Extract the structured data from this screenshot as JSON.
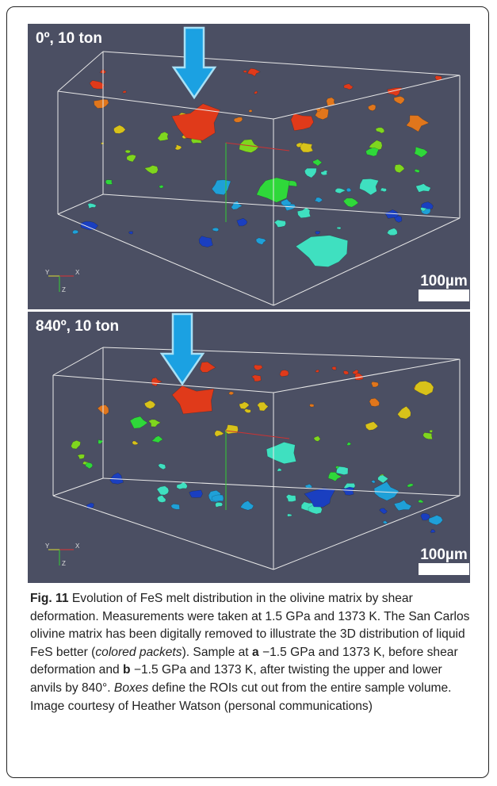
{
  "panels": [
    {
      "label": "0º, 10 ton",
      "scale_bar": "100µm",
      "axes": [
        "Y",
        "X",
        "Z"
      ]
    },
    {
      "label": "840º, 10 ton",
      "scale_bar": "100µm",
      "axes": [
        "Y",
        "X",
        "Z"
      ]
    }
  ],
  "caption": {
    "segments": [
      "Fig. 11",
      " Evolution of FeS melt distribution in the olivine matrix by shear deformation. Measurements were taken at 1.5 GPa and 1373 K. The San Carlos olivine matrix has been digitally removed to illustrate the 3D distribution of liquid FeS better (",
      "colored packets",
      "). Sample at ",
      "a",
      " −1.5 GPa and 1373 K, before shear deformation and ",
      "b",
      " −1.5 GPa and 1373 K, after twisting the upper and lower anvils by 840°. ",
      "Boxes",
      " define the ROIs cut out from the entire sample volume. Image courtesy of Heather Watson (personal communications)"
    ]
  }
}
